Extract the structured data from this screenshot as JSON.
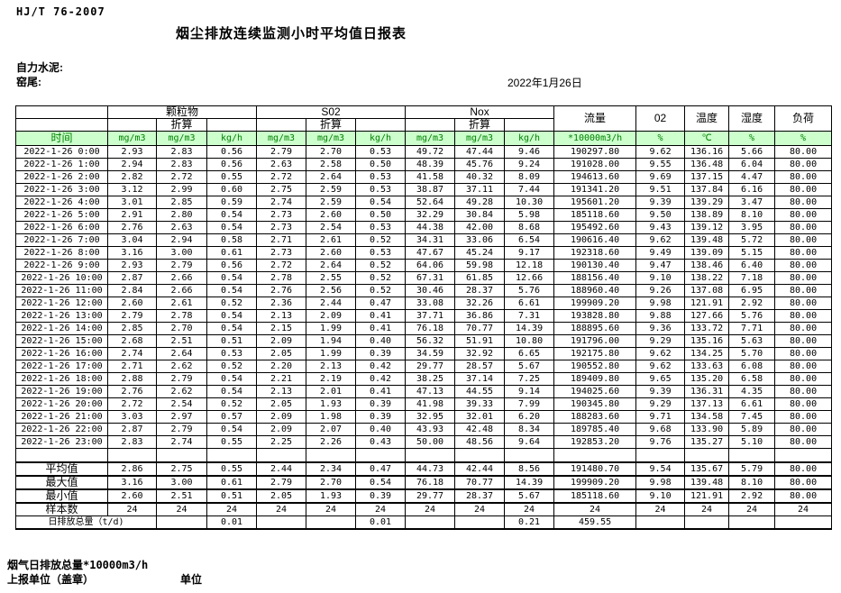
{
  "page": {
    "standard": "HJ/T 76-2007",
    "title": "烟尘排放连续监测小时平均值日报表",
    "company": "自力水泥:",
    "site": "窑尾:",
    "date": "2022年1月26日"
  },
  "table": {
    "header": {
      "time": "时间",
      "groups": [
        "颗粒物",
        "S02",
        "Nox"
      ],
      "converted": "折算",
      "flow": "流量",
      "o2": "02",
      "temperature": "温度",
      "humidity": "湿度",
      "load": "负荷",
      "units": [
        "mg/m3",
        "mg/m3",
        "kg/h",
        "mg/m3",
        "mg/m3",
        "kg/h",
        "mg/m3",
        "mg/m3",
        "kg/h",
        "*10000m3/h",
        "%",
        "℃",
        "%",
        "%"
      ]
    },
    "rows": [
      {
        "time": "2022-1-26 0:00",
        "values": [
          "2.93",
          "2.83",
          "0.56",
          "2.79",
          "2.70",
          "0.53",
          "49.72",
          "47.44",
          "9.46",
          "190297.80",
          "9.62",
          "136.16",
          "5.66",
          "80.00"
        ]
      },
      {
        "time": "2022-1-26 1:00",
        "values": [
          "2.94",
          "2.83",
          "0.56",
          "2.63",
          "2.58",
          "0.50",
          "48.39",
          "45.76",
          "9.24",
          "191028.00",
          "9.55",
          "136.48",
          "6.04",
          "80.00"
        ]
      },
      {
        "time": "2022-1-26 2:00",
        "values": [
          "2.82",
          "2.72",
          "0.55",
          "2.72",
          "2.64",
          "0.53",
          "41.58",
          "40.32",
          "8.09",
          "194613.60",
          "9.69",
          "137.15",
          "4.47",
          "80.00"
        ]
      },
      {
        "time": "2022-1-26 3:00",
        "values": [
          "3.12",
          "2.99",
          "0.60",
          "2.75",
          "2.59",
          "0.53",
          "38.87",
          "37.11",
          "7.44",
          "191341.20",
          "9.51",
          "137.84",
          "6.16",
          "80.00"
        ]
      },
      {
        "time": "2022-1-26 4:00",
        "values": [
          "3.01",
          "2.85",
          "0.59",
          "2.74",
          "2.59",
          "0.54",
          "52.64",
          "49.28",
          "10.30",
          "195601.20",
          "9.39",
          "139.29",
          "3.47",
          "80.00"
        ]
      },
      {
        "time": "2022-1-26 5:00",
        "values": [
          "2.91",
          "2.80",
          "0.54",
          "2.73",
          "2.60",
          "0.50",
          "32.29",
          "30.84",
          "5.98",
          "185118.60",
          "9.50",
          "138.89",
          "8.10",
          "80.00"
        ]
      },
      {
        "time": "2022-1-26 6:00",
        "values": [
          "2.76",
          "2.63",
          "0.54",
          "2.73",
          "2.54",
          "0.53",
          "44.38",
          "42.00",
          "8.68",
          "195492.60",
          "9.43",
          "139.12",
          "3.95",
          "80.00"
        ]
      },
      {
        "time": "2022-1-26 7:00",
        "values": [
          "3.04",
          "2.94",
          "0.58",
          "2.71",
          "2.61",
          "0.52",
          "34.31",
          "33.06",
          "6.54",
          "190616.40",
          "9.62",
          "139.48",
          "5.72",
          "80.00"
        ]
      },
      {
        "time": "2022-1-26 8:00",
        "values": [
          "3.16",
          "3.00",
          "0.61",
          "2.73",
          "2.60",
          "0.53",
          "47.67",
          "45.24",
          "9.17",
          "192318.60",
          "9.49",
          "139.09",
          "5.15",
          "80.00"
        ]
      },
      {
        "time": "2022-1-26 9:00",
        "values": [
          "2.93",
          "2.79",
          "0.56",
          "2.72",
          "2.64",
          "0.52",
          "64.06",
          "59.98",
          "12.18",
          "190130.40",
          "9.47",
          "138.46",
          "6.40",
          "80.00"
        ]
      },
      {
        "time": "2022-1-26 10:00",
        "values": [
          "2.87",
          "2.66",
          "0.54",
          "2.78",
          "2.55",
          "0.52",
          "67.31",
          "61.85",
          "12.66",
          "188156.40",
          "9.10",
          "138.22",
          "7.18",
          "80.00"
        ]
      },
      {
        "time": "2022-1-26 11:00",
        "values": [
          "2.84",
          "2.66",
          "0.54",
          "2.76",
          "2.56",
          "0.52",
          "30.46",
          "28.37",
          "5.76",
          "188960.40",
          "9.26",
          "137.08",
          "6.95",
          "80.00"
        ]
      },
      {
        "time": "2022-1-26 12:00",
        "values": [
          "2.60",
          "2.61",
          "0.52",
          "2.36",
          "2.44",
          "0.47",
          "33.08",
          "32.26",
          "6.61",
          "199909.20",
          "9.98",
          "121.91",
          "2.92",
          "80.00"
        ]
      },
      {
        "time": "2022-1-26 13:00",
        "values": [
          "2.79",
          "2.78",
          "0.54",
          "2.13",
          "2.09",
          "0.41",
          "37.71",
          "36.86",
          "7.31",
          "193828.80",
          "9.88",
          "127.66",
          "5.76",
          "80.00"
        ]
      },
      {
        "time": "2022-1-26 14:00",
        "values": [
          "2.85",
          "2.70",
          "0.54",
          "2.15",
          "1.99",
          "0.41",
          "76.18",
          "70.77",
          "14.39",
          "188895.60",
          "9.36",
          "133.72",
          "7.71",
          "80.00"
        ]
      },
      {
        "time": "2022-1-26 15:00",
        "values": [
          "2.68",
          "2.51",
          "0.51",
          "2.09",
          "1.94",
          "0.40",
          "56.32",
          "51.91",
          "10.80",
          "191796.00",
          "9.29",
          "135.16",
          "5.63",
          "80.00"
        ]
      },
      {
        "time": "2022-1-26 16:00",
        "values": [
          "2.74",
          "2.64",
          "0.53",
          "2.05",
          "1.99",
          "0.39",
          "34.59",
          "32.92",
          "6.65",
          "192175.80",
          "9.62",
          "134.25",
          "5.70",
          "80.00"
        ]
      },
      {
        "time": "2022-1-26 17:00",
        "values": [
          "2.71",
          "2.62",
          "0.52",
          "2.20",
          "2.13",
          "0.42",
          "29.77",
          "28.57",
          "5.67",
          "190552.80",
          "9.62",
          "133.63",
          "6.08",
          "80.00"
        ]
      },
      {
        "time": "2022-1-26 18:00",
        "values": [
          "2.88",
          "2.79",
          "0.54",
          "2.21",
          "2.19",
          "0.42",
          "38.25",
          "37.14",
          "7.25",
          "189409.80",
          "9.65",
          "135.20",
          "6.58",
          "80.00"
        ]
      },
      {
        "time": "2022-1-26 19:00",
        "values": [
          "2.76",
          "2.62",
          "0.54",
          "2.13",
          "2.01",
          "0.41",
          "47.13",
          "44.55",
          "9.14",
          "194025.60",
          "9.39",
          "136.31",
          "4.35",
          "80.00"
        ]
      },
      {
        "time": "2022-1-26 20:00",
        "values": [
          "2.72",
          "2.54",
          "0.52",
          "2.05",
          "1.93",
          "0.39",
          "41.98",
          "39.33",
          "7.99",
          "190345.80",
          "9.29",
          "137.13",
          "6.61",
          "80.00"
        ]
      },
      {
        "time": "2022-1-26 21:00",
        "values": [
          "3.03",
          "2.97",
          "0.57",
          "2.09",
          "1.98",
          "0.39",
          "32.95",
          "32.01",
          "6.20",
          "188283.60",
          "9.71",
          "134.58",
          "7.45",
          "80.00"
        ]
      },
      {
        "time": "2022-1-26 22:00",
        "values": [
          "2.87",
          "2.79",
          "0.54",
          "2.09",
          "2.07",
          "0.40",
          "43.93",
          "42.48",
          "8.34",
          "189785.40",
          "9.68",
          "133.90",
          "5.89",
          "80.00"
        ]
      },
      {
        "time": "2022-1-26 23:00",
        "values": [
          "2.83",
          "2.74",
          "0.55",
          "2.25",
          "2.26",
          "0.43",
          "50.00",
          "48.56",
          "9.64",
          "192853.20",
          "9.76",
          "135.27",
          "5.10",
          "80.00"
        ]
      }
    ],
    "summary": [
      {
        "label": "平均值",
        "values": [
          "2.86",
          "2.75",
          "0.55",
          "2.44",
          "2.34",
          "0.47",
          "44.73",
          "42.44",
          "8.56",
          "191480.70",
          "9.54",
          "135.67",
          "5.79",
          "80.00"
        ]
      },
      {
        "label": "最大值",
        "values": [
          "3.16",
          "3.00",
          "0.61",
          "2.79",
          "2.70",
          "0.54",
          "76.18",
          "70.77",
          "14.39",
          "199909.20",
          "9.98",
          "139.48",
          "8.10",
          "80.00"
        ]
      },
      {
        "label": "最小值",
        "values": [
          "2.60",
          "2.51",
          "0.51",
          "2.05",
          "1.93",
          "0.39",
          "29.77",
          "28.37",
          "5.67",
          "185118.60",
          "9.10",
          "121.91",
          "2.92",
          "80.00"
        ]
      },
      {
        "label": "样本数",
        "values": [
          "24",
          "24",
          "24",
          "24",
          "24",
          "24",
          "24",
          "24",
          "24",
          "24",
          "24",
          "24",
          "24",
          "24"
        ]
      }
    ],
    "total": {
      "label": "日排放总量（t/d)",
      "cells": [
        "",
        "0.01",
        "",
        "",
        "0.01",
        "",
        "",
        "0.21",
        "459.55",
        "",
        "",
        "",
        ""
      ]
    }
  },
  "footer": {
    "flow_note": "烟气日排放总量*10000m3/h",
    "report_unit": "上报单位（盖章）",
    "unit": "单位"
  },
  "colors": {
    "header_bg": "#ccffcc",
    "header_text": "#008000",
    "border": "#000000"
  }
}
